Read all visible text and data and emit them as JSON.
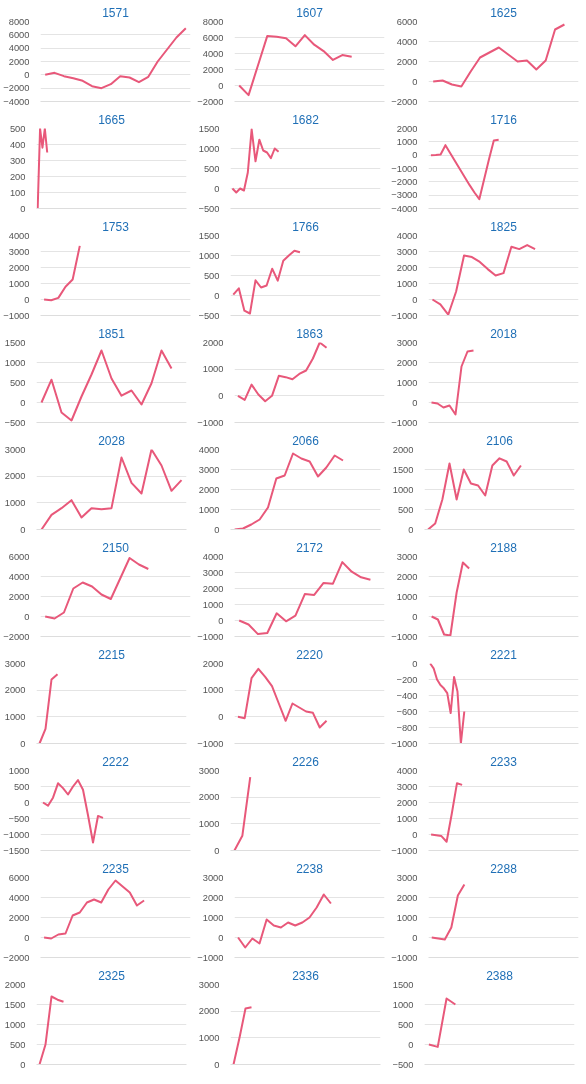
{
  "chart_data": [
    {
      "type": "line",
      "title": "1571",
      "categories": [
        null,
        null,
        null,
        null,
        null,
        null,
        null,
        null,
        null,
        null,
        null,
        null,
        null,
        null,
        null,
        null
      ],
      "series": [
        {
          "color": "#e8587a",
          "values": [
            0,
            300,
            -200,
            -500,
            -900,
            -1700,
            -2000,
            -1400,
            -200,
            -400,
            -1100,
            -300,
            2000,
            3800,
            5600,
            7000
          ]
        }
      ],
      "ylim": [
        -4000,
        8000
      ],
      "yticks": [
        -4000,
        -2000,
        0,
        2000,
        4000,
        6000,
        8000
      ],
      "grid": "y",
      "tick_labels": "y"
    },
    {
      "type": "line",
      "title": "1607",
      "categories": [
        null,
        null,
        null,
        null,
        null,
        null,
        null,
        null,
        null,
        null,
        null,
        null,
        null,
        null,
        null,
        null
      ],
      "series": [
        {
          "color": "#e8587a",
          "values": [
            0,
            -1200,
            2500,
            6200,
            6100,
            5900,
            4900,
            6300,
            5100,
            4300,
            3200,
            3800,
            3600,
            null,
            null,
            null
          ]
        }
      ],
      "ylim": [
        -2000,
        8000
      ],
      "yticks": [
        -2000,
        0,
        2000,
        4000,
        6000,
        8000
      ],
      "grid": "y",
      "tick_labels": "y"
    },
    {
      "type": "line",
      "title": "1625",
      "categories": [
        null,
        null,
        null,
        null,
        null,
        null,
        null,
        null,
        null,
        null,
        null,
        null,
        null,
        null,
        null,
        null
      ],
      "series": [
        {
          "color": "#e8587a",
          "values": [
            0,
            100,
            -300,
            -500,
            1000,
            2400,
            2900,
            3400,
            2700,
            2000,
            2100,
            1200,
            2100,
            5200,
            5700,
            null
          ]
        }
      ],
      "ylim": [
        -2000,
        6000
      ],
      "yticks": [
        -2000,
        0,
        2000,
        4000,
        6000
      ],
      "grid": "y",
      "tick_labels": "y"
    },
    {
      "type": "line",
      "title": "1665",
      "categories": [
        null,
        null,
        null,
        null,
        null,
        null,
        null,
        null,
        null,
        null,
        null,
        null,
        null,
        null,
        null,
        null,
        null,
        null,
        null,
        null,
        null,
        null,
        null,
        null,
        null,
        null,
        null,
        null,
        null,
        null,
        null,
        null,
        null,
        null,
        null,
        null,
        null,
        null,
        null,
        null,
        null,
        null,
        null,
        null,
        null,
        null,
        null,
        null,
        null,
        null,
        null,
        null,
        null,
        null,
        null,
        null,
        null,
        null,
        null,
        null,
        null,
        null,
        null
      ],
      "series": [
        {
          "color": "#e8587a",
          "values": [
            0,
            500,
            380,
            500,
            350,
            null,
            null,
            null,
            null,
            null,
            null,
            null,
            null,
            null,
            null,
            null,
            null,
            null,
            null,
            null,
            null,
            null,
            null,
            null,
            null,
            null,
            null,
            null,
            null,
            null,
            null,
            null,
            null,
            null,
            null,
            null,
            null,
            null,
            null,
            null,
            null,
            null,
            null,
            null,
            null,
            null,
            null,
            null,
            null,
            null,
            null,
            null,
            null,
            null,
            null,
            null,
            null,
            null,
            null,
            null,
            null,
            null,
            null
          ]
        }
      ],
      "ylim": [
        0,
        500
      ],
      "yticks": [
        0,
        100,
        200,
        300,
        400,
        500
      ],
      "grid": "y",
      "tick_labels": "y"
    },
    {
      "type": "line",
      "title": "1682",
      "categories": [
        null,
        null,
        null,
        null,
        null,
        null,
        null,
        null,
        null,
        null,
        null,
        null,
        null,
        null,
        null,
        null,
        null,
        null,
        null,
        null,
        null,
        null,
        null,
        null,
        null,
        null,
        null,
        null,
        null,
        null,
        null,
        null,
        null,
        null,
        null,
        null,
        null,
        null,
        null
      ],
      "series": [
        {
          "color": "#e8587a",
          "values": [
            0,
            -100,
            0,
            -50,
            400,
            1480,
            680,
            1220,
            950,
            900,
            760,
            1000,
            920,
            null,
            null,
            null,
            null,
            null,
            null,
            null,
            null,
            null,
            null,
            null,
            null,
            null,
            null,
            null,
            null,
            null,
            null,
            null,
            null,
            null,
            null,
            null,
            null,
            null,
            null
          ]
        }
      ],
      "ylim": [
        -500,
        1500
      ],
      "yticks": [
        -500,
        0,
        500,
        1000,
        1500
      ],
      "grid": "y",
      "tick_labels": "y"
    },
    {
      "type": "line",
      "title": "1716",
      "categories": [
        null,
        null,
        null,
        null,
        null,
        null,
        null,
        null,
        null,
        null,
        null,
        null,
        null,
        null,
        null,
        null,
        null,
        null,
        null,
        null,
        null,
        null,
        null,
        null,
        null,
        null,
        null,
        null,
        null,
        null,
        null
      ],
      "series": [
        {
          "color": "#e8587a",
          "values": [
            0,
            20,
            50,
            750,
            150,
            -450,
            -1050,
            -1650,
            -2250,
            -2800,
            -3300,
            -1800,
            -300,
            1100,
            1150,
            null,
            null,
            null,
            null,
            null,
            null,
            null,
            null,
            null,
            null,
            null,
            null,
            null,
            null,
            null,
            null
          ]
        }
      ],
      "ylim": [
        -4000,
        2000
      ],
      "yticks": [
        -4000,
        -3000,
        -2000,
        -1000,
        0,
        1000,
        2000
      ],
      "grid": "y",
      "tick_labels": "y"
    },
    {
      "type": "line",
      "title": "1753",
      "categories": [
        null,
        null,
        null,
        null,
        null,
        null,
        null,
        null,
        null,
        null,
        null,
        null,
        null,
        null,
        null,
        null,
        null,
        null,
        null,
        null,
        null
      ],
      "series": [
        {
          "color": "#e8587a",
          "values": [
            0,
            -50,
            100,
            800,
            1250,
            3350,
            null,
            null,
            null,
            null,
            null,
            null,
            null,
            null,
            null,
            null,
            null,
            null,
            null,
            null,
            null
          ]
        }
      ],
      "ylim": [
        -1000,
        4000
      ],
      "yticks": [
        -1000,
        0,
        1000,
        2000,
        3000,
        4000
      ],
      "grid": "y",
      "tick_labels": "y"
    },
    {
      "type": "line",
      "title": "1766",
      "categories": [
        null,
        null,
        null,
        null,
        null,
        null,
        null,
        null,
        null,
        null,
        null,
        null,
        null,
        null,
        null,
        null,
        null,
        null,
        null,
        null,
        null,
        null,
        null,
        null,
        null,
        null,
        null
      ],
      "series": [
        {
          "color": "#e8587a",
          "values": [
            20,
            180,
            -380,
            -450,
            380,
            200,
            250,
            670,
            370,
            870,
            1000,
            1120,
            1080,
            null,
            null,
            null,
            null,
            null,
            null,
            null,
            null,
            null,
            null,
            null,
            null,
            null,
            null
          ]
        }
      ],
      "ylim": [
        -500,
        1500
      ],
      "yticks": [
        -500,
        0,
        500,
        1000,
        1500
      ],
      "grid": "y",
      "tick_labels": "y"
    },
    {
      "type": "line",
      "title": "1825",
      "categories": [
        null,
        null,
        null,
        null,
        null,
        null,
        null,
        null,
        null,
        null,
        null,
        null,
        null,
        null,
        null,
        null,
        null,
        null,
        null
      ],
      "series": [
        {
          "color": "#e8587a",
          "values": [
            0,
            -300,
            -950,
            500,
            2750,
            2650,
            2350,
            1900,
            1500,
            1650,
            3300,
            3150,
            3400,
            3150,
            null,
            null,
            null,
            null,
            null
          ]
        }
      ],
      "ylim": [
        -1000,
        4000
      ],
      "yticks": [
        -1000,
        0,
        1000,
        2000,
        3000,
        4000
      ],
      "grid": "y",
      "tick_labels": "y"
    },
    {
      "type": "line",
      "title": "1851",
      "categories": [
        null,
        null,
        null,
        null,
        null,
        null,
        null,
        null,
        null,
        null,
        null,
        null,
        null,
        null,
        null
      ],
      "series": [
        {
          "color": "#e8587a",
          "values": [
            0,
            570,
            -250,
            -450,
            150,
            700,
            1300,
            600,
            170,
            300,
            -50,
            480,
            1300,
            850,
            null
          ]
        }
      ],
      "ylim": [
        -500,
        1500
      ],
      "yticks": [
        -500,
        0,
        500,
        1000,
        1500
      ],
      "grid": "y",
      "tick_labels": "y"
    },
    {
      "type": "line",
      "title": "1863",
      "categories": [
        null,
        null,
        null,
        null,
        null,
        null,
        null,
        null,
        null,
        null,
        null,
        null,
        null,
        null,
        null,
        null,
        null,
        null,
        null,
        null,
        null,
        null
      ],
      "series": [
        {
          "color": "#e8587a",
          "values": [
            0,
            -150,
            420,
            50,
            -200,
            0,
            750,
            700,
            620,
            820,
            950,
            1400,
            2000,
            1800,
            null,
            null,
            null,
            null,
            null,
            null,
            null,
            null
          ]
        }
      ],
      "ylim": [
        -1000,
        2000
      ],
      "yticks": [
        -1000,
        0,
        1000,
        2000
      ],
      "grid": "y",
      "tick_labels": "y"
    },
    {
      "type": "line",
      "title": "2018",
      "categories": [
        null,
        null,
        null,
        null,
        null,
        null,
        null,
        null,
        null,
        null,
        null,
        null,
        null,
        null,
        null,
        null,
        null,
        null,
        null,
        null,
        null,
        null,
        null,
        null,
        null
      ],
      "series": [
        {
          "color": "#e8587a",
          "values": [
            0,
            -50,
            -250,
            -150,
            -600,
            1800,
            2550,
            2600,
            null,
            null,
            null,
            null,
            null,
            null,
            null,
            null,
            null,
            null,
            null,
            null,
            null,
            null,
            null,
            null,
            null
          ]
        }
      ],
      "ylim": [
        -1000,
        3000
      ],
      "yticks": [
        -1000,
        0,
        1000,
        2000,
        3000
      ],
      "grid": "y",
      "tick_labels": "y"
    },
    {
      "type": "line",
      "title": "2028",
      "categories": [
        null,
        null,
        null,
        null,
        null,
        null,
        null,
        null,
        null,
        null,
        null,
        null,
        null,
        null,
        null
      ],
      "series": [
        {
          "color": "#e8587a",
          "values": [
            0,
            550,
            800,
            1100,
            450,
            800,
            760,
            800,
            2700,
            1750,
            1350,
            3000,
            2400,
            1450,
            1850
          ]
        }
      ],
      "ylim": [
        0,
        3000
      ],
      "yticks": [
        0,
        1000,
        2000,
        3000
      ],
      "grid": "y",
      "tick_labels": "y"
    },
    {
      "type": "line",
      "title": "2066",
      "categories": [
        null,
        null,
        null,
        null,
        null,
        null,
        null,
        null,
        null,
        null,
        null,
        null,
        null,
        null,
        null,
        null,
        null,
        null
      ],
      "series": [
        {
          "color": "#e8587a",
          "values": [
            0,
            50,
            250,
            500,
            1100,
            2550,
            2700,
            3800,
            3550,
            3400,
            2650,
            3100,
            3700,
            3450,
            null,
            null,
            null,
            null
          ]
        }
      ],
      "ylim": [
        0,
        4000
      ],
      "yticks": [
        0,
        1000,
        2000,
        3000,
        4000
      ],
      "grid": "y",
      "tick_labels": "y"
    },
    {
      "type": "line",
      "title": "2106",
      "categories": [
        null,
        null,
        null,
        null,
        null,
        null,
        null,
        null,
        null,
        null,
        null,
        null,
        null,
        null,
        null,
        null,
        null,
        null,
        null,
        null,
        null
      ],
      "series": [
        {
          "color": "#e8587a",
          "values": [
            0,
            150,
            750,
            1650,
            750,
            1500,
            1150,
            1100,
            850,
            1600,
            1780,
            1700,
            1350,
            1600,
            null,
            null,
            null,
            null,
            null,
            null,
            null
          ]
        }
      ],
      "ylim": [
        0,
        2000
      ],
      "yticks": [
        0,
        500,
        1000,
        1500,
        2000
      ],
      "grid": "y",
      "tick_labels": "y"
    },
    {
      "type": "line",
      "title": "2150",
      "categories": [
        null,
        null,
        null,
        null,
        null,
        null,
        null,
        null,
        null,
        null,
        null,
        null,
        null,
        null,
        null,
        null
      ],
      "series": [
        {
          "color": "#e8587a",
          "values": [
            0,
            -200,
            400,
            2800,
            3400,
            3000,
            2200,
            1750,
            3800,
            5850,
            5200,
            4750,
            null,
            null,
            null,
            null
          ]
        }
      ],
      "ylim": [
        -2000,
        6000
      ],
      "yticks": [
        -2000,
        0,
        2000,
        4000,
        6000
      ],
      "grid": "y",
      "tick_labels": "y"
    },
    {
      "type": "line",
      "title": "2172",
      "categories": [
        null,
        null,
        null,
        null,
        null,
        null,
        null,
        null,
        null,
        null,
        null,
        null,
        null,
        null,
        null,
        null
      ],
      "series": [
        {
          "color": "#e8587a",
          "values": [
            0,
            -250,
            -850,
            -780,
            450,
            -50,
            300,
            1650,
            1600,
            2350,
            2300,
            3650,
            3050,
            2700,
            2550,
            null
          ]
        }
      ],
      "ylim": [
        -1000,
        4000
      ],
      "yticks": [
        -1000,
        0,
        1000,
        2000,
        3000,
        4000
      ],
      "grid": "y",
      "tick_labels": "y"
    },
    {
      "type": "line",
      "title": "2188",
      "categories": [
        null,
        null,
        null,
        null,
        null,
        null,
        null,
        null,
        null,
        null,
        null,
        null,
        null,
        null,
        null,
        null,
        null,
        null,
        null,
        null,
        null,
        null,
        null,
        null
      ],
      "series": [
        {
          "color": "#e8587a",
          "values": [
            0,
            -150,
            -900,
            -950,
            1200,
            2700,
            2400,
            null,
            null,
            null,
            null,
            null,
            null,
            null,
            null,
            null,
            null,
            null,
            null,
            null,
            null,
            null,
            null,
            null
          ]
        }
      ],
      "ylim": [
        -1000,
        3000
      ],
      "yticks": [
        -1000,
        0,
        1000,
        2000,
        3000
      ],
      "grid": "y",
      "tick_labels": "y"
    },
    {
      "type": "line",
      "title": "2215",
      "categories": [
        null,
        null,
        null,
        null,
        null,
        null,
        null,
        null,
        null,
        null,
        null,
        null,
        null,
        null,
        null,
        null,
        null,
        null,
        null,
        null,
        null,
        null,
        null,
        null,
        null
      ],
      "series": [
        {
          "color": "#e8587a",
          "values": [
            0,
            550,
            2400,
            2600,
            null,
            null,
            null,
            null,
            null,
            null,
            null,
            null,
            null,
            null,
            null,
            null,
            null,
            null,
            null,
            null,
            null,
            null,
            null,
            null,
            null
          ]
        }
      ],
      "ylim": [
        0,
        3000
      ],
      "yticks": [
        0,
        1000,
        2000,
        3000
      ],
      "grid": "y",
      "tick_labels": "y"
    },
    {
      "type": "line",
      "title": "2220",
      "categories": [
        null,
        null,
        null,
        null,
        null,
        null,
        null,
        null,
        null,
        null,
        null,
        null,
        null,
        null,
        null,
        null,
        null,
        null,
        null,
        null,
        null,
        null
      ],
      "series": [
        {
          "color": "#e8587a",
          "values": [
            0,
            -50,
            1450,
            1800,
            1500,
            1150,
            500,
            -150,
            500,
            350,
            200,
            150,
            -400,
            -150,
            null,
            null,
            null,
            null,
            null,
            null,
            null,
            null
          ]
        }
      ],
      "ylim": [
        -1000,
        2000
      ],
      "yticks": [
        -1000,
        0,
        1000,
        2000
      ],
      "grid": "y",
      "tick_labels": "y"
    },
    {
      "type": "line",
      "title": "2221",
      "categories": [
        null,
        null,
        null,
        null,
        null,
        null,
        null,
        null,
        null,
        null,
        null,
        null,
        null,
        null,
        null,
        null,
        null,
        null,
        null,
        null,
        null,
        null,
        null,
        null,
        null,
        null,
        null,
        null,
        null,
        null,
        null,
        null,
        null,
        null,
        null,
        null,
        null,
        null,
        null,
        null,
        null,
        null,
        null,
        null
      ],
      "series": [
        {
          "color": "#e8587a",
          "values": [
            0,
            -60,
            -200,
            -270,
            -310,
            -370,
            -620,
            -170,
            -350,
            -1000,
            -600,
            null,
            null,
            null,
            null,
            null,
            null,
            null,
            null,
            null,
            null,
            null,
            null,
            null,
            null,
            null,
            null,
            null,
            null,
            null,
            null,
            null,
            null,
            null,
            null,
            null,
            null,
            null,
            null,
            null,
            null,
            null,
            null,
            null
          ]
        }
      ],
      "ylim": [
        -1000,
        0
      ],
      "yticks": [
        -1000,
        -800,
        -600,
        -400,
        -200,
        0
      ],
      "grid": "y",
      "tick_labels": "y"
    },
    {
      "type": "line",
      "title": "2222",
      "categories": [
        null,
        null,
        null,
        null,
        null,
        null,
        null,
        null,
        null,
        null,
        null,
        null,
        null,
        null,
        null,
        null,
        null,
        null,
        null,
        null,
        null,
        null,
        null,
        null,
        null,
        null,
        null,
        null,
        null,
        null
      ],
      "series": [
        {
          "color": "#e8587a",
          "values": [
            0,
            -100,
            150,
            600,
            450,
            250,
            500,
            700,
            400,
            -400,
            -1250,
            -420,
            -480,
            null,
            null,
            null,
            null,
            null,
            null,
            null,
            null,
            null,
            null,
            null,
            null,
            null,
            null,
            null,
            null,
            null
          ]
        }
      ],
      "ylim": [
        -1500,
        1000
      ],
      "yticks": [
        -1500,
        -1000,
        -500,
        0,
        500,
        1000
      ],
      "grid": "y",
      "tick_labels": "y"
    },
    {
      "type": "line",
      "title": "2226",
      "categories": [
        null,
        null,
        null,
        null,
        null,
        null,
        null,
        null,
        null,
        null,
        null,
        null,
        null,
        null,
        null,
        null,
        null,
        null,
        null
      ],
      "series": [
        {
          "color": "#e8587a",
          "values": [
            0,
            550,
            2750,
            null,
            null,
            null,
            null,
            null,
            null,
            null,
            null,
            null,
            null,
            null,
            null,
            null,
            null,
            null,
            null
          ]
        }
      ],
      "ylim": [
        0,
        3000
      ],
      "yticks": [
        0,
        1000,
        2000,
        3000
      ],
      "grid": "y",
      "tick_labels": "y"
    },
    {
      "type": "line",
      "title": "2233",
      "categories": [
        null,
        null,
        null,
        null,
        null,
        null,
        null,
        null,
        null,
        null,
        null,
        null,
        null,
        null,
        null,
        null,
        null,
        null,
        null,
        null,
        null,
        null,
        null,
        null,
        null,
        null,
        null,
        null,
        null
      ],
      "series": [
        {
          "color": "#e8587a",
          "values": [
            0,
            -50,
            -100,
            -450,
            1300,
            3200,
            3100,
            null,
            null,
            null,
            null,
            null,
            null,
            null,
            null,
            null,
            null,
            null,
            null,
            null,
            null,
            null,
            null,
            null,
            null,
            null,
            null,
            null,
            null
          ]
        }
      ],
      "ylim": [
        -1000,
        4000
      ],
      "yticks": [
        -1000,
        0,
        1000,
        2000,
        3000,
        4000
      ],
      "grid": "y",
      "tick_labels": "y"
    },
    {
      "type": "line",
      "title": "2235",
      "categories": [
        null,
        null,
        null,
        null,
        null,
        null,
        null,
        null,
        null,
        null,
        null,
        null,
        null,
        null,
        null,
        null,
        null,
        null,
        null,
        null,
        null
      ],
      "series": [
        {
          "color": "#e8587a",
          "values": [
            0,
            -100,
            300,
            400,
            2200,
            2500,
            3500,
            3800,
            3500,
            4800,
            5700,
            5100,
            4500,
            3200,
            3700,
            null,
            null,
            null,
            null,
            null,
            null
          ]
        }
      ],
      "ylim": [
        -2000,
        6000
      ],
      "yticks": [
        -2000,
        0,
        2000,
        4000,
        6000
      ],
      "grid": "y",
      "tick_labels": "y"
    },
    {
      "type": "line",
      "title": "2238",
      "categories": [
        null,
        null,
        null,
        null,
        null,
        null,
        null,
        null,
        null,
        null,
        null,
        null,
        null,
        null,
        null,
        null,
        null,
        null,
        null,
        null,
        null
      ],
      "series": [
        {
          "color": "#e8587a",
          "values": [
            0,
            -500,
            -50,
            -300,
            900,
            600,
            500,
            750,
            600,
            750,
            1000,
            1500,
            2150,
            1700,
            null,
            null,
            null,
            null,
            null,
            null,
            null
          ]
        }
      ],
      "ylim": [
        -1000,
        3000
      ],
      "yticks": [
        -1000,
        0,
        1000,
        2000,
        3000
      ],
      "grid": "y",
      "tick_labels": "y"
    },
    {
      "type": "line",
      "title": "2288",
      "categories": [
        null,
        null,
        null,
        null,
        null,
        null,
        null,
        null,
        null,
        null,
        null,
        null,
        null,
        null,
        null,
        null,
        null,
        null,
        null,
        null,
        null,
        null,
        null
      ],
      "series": [
        {
          "color": "#e8587a",
          "values": [
            0,
            -50,
            -100,
            500,
            2100,
            2650,
            null,
            null,
            null,
            null,
            null,
            null,
            null,
            null,
            null,
            null,
            null,
            null,
            null,
            null,
            null,
            null,
            null
          ]
        }
      ],
      "ylim": [
        -1000,
        3000
      ],
      "yticks": [
        -1000,
        0,
        1000,
        2000,
        3000
      ],
      "grid": "y",
      "tick_labels": "y"
    },
    {
      "type": "line",
      "title": "2325",
      "categories": [
        null,
        null,
        null,
        null,
        null,
        null,
        null,
        null,
        null,
        null,
        null,
        null,
        null,
        null,
        null,
        null,
        null,
        null,
        null,
        null,
        null,
        null,
        null,
        null,
        null
      ],
      "series": [
        {
          "color": "#e8587a",
          "values": [
            0,
            500,
            1700,
            1620,
            1570,
            null,
            null,
            null,
            null,
            null,
            null,
            null,
            null,
            null,
            null,
            null,
            null,
            null,
            null,
            null,
            null,
            null,
            null,
            null,
            null
          ]
        }
      ],
      "ylim": [
        0,
        2000
      ],
      "yticks": [
        0,
        500,
        1000,
        1500,
        2000
      ],
      "grid": "y",
      "tick_labels": "y"
    },
    {
      "type": "line",
      "title": "2336",
      "categories": [
        null,
        null,
        null,
        null,
        null,
        null,
        null,
        null,
        null,
        null,
        null,
        null,
        null,
        null,
        null,
        null,
        null,
        null,
        null,
        null,
        null,
        null,
        null,
        null,
        null
      ],
      "series": [
        {
          "color": "#e8587a",
          "values": [
            0,
            1000,
            2100,
            2150,
            null,
            null,
            null,
            null,
            null,
            null,
            null,
            null,
            null,
            null,
            null,
            null,
            null,
            null,
            null,
            null,
            null,
            null,
            null,
            null,
            null
          ]
        }
      ],
      "ylim": [
        0,
        3000
      ],
      "yticks": [
        0,
        1000,
        2000,
        3000
      ],
      "grid": "y",
      "tick_labels": "y"
    },
    {
      "type": "line",
      "title": "2388",
      "categories": [
        null,
        null,
        null,
        null,
        null,
        null,
        null,
        null,
        null,
        null,
        null,
        null,
        null,
        null,
        null,
        null,
        null
      ],
      "series": [
        {
          "color": "#e8587a",
          "values": [
            0,
            -60,
            1150,
            1000,
            null,
            null,
            null,
            null,
            null,
            null,
            null,
            null,
            null,
            null,
            null,
            null,
            null
          ]
        }
      ],
      "ylim": [
        -500,
        1500
      ],
      "yticks": [
        -500,
        0,
        500,
        1000,
        1500
      ],
      "grid": "y",
      "tick_labels": "y"
    }
  ]
}
